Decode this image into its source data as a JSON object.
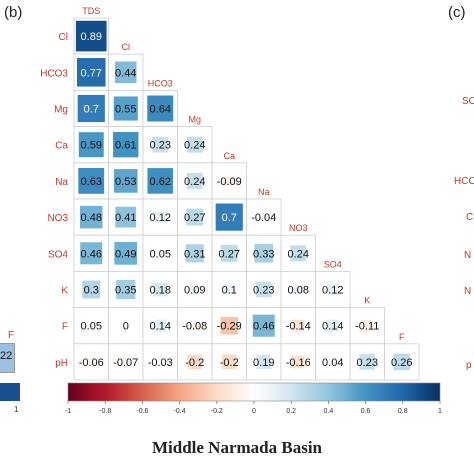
{
  "panel_label": "(b)",
  "right_panel_label": "(c)",
  "caption": "Middle Narmada Basin",
  "left_fragments": {
    "label": "F",
    "value": "22",
    "axis_value": "1"
  },
  "right_fragments": [
    "SO",
    "HCO",
    "C",
    "N",
    "N",
    "p"
  ],
  "colors": {
    "positive": "#1f5aa6",
    "negative": "#b2182b",
    "label": "#c0392b",
    "frame": "#999999"
  },
  "chart_data": {
    "type": "heatmap",
    "title": "",
    "variables": [
      "TDS",
      "Cl",
      "HCO3",
      "Mg",
      "Ca",
      "Na",
      "NO3",
      "SO4",
      "K",
      "F",
      "pH"
    ],
    "row_labels": [
      "Cl",
      "HCO3",
      "Mg",
      "Ca",
      "Na",
      "NO3",
      "SO4",
      "K",
      "F",
      "pH"
    ],
    "diagonal_labels": [
      "TDS",
      "Cl",
      "HCO3",
      "Mg",
      "Ca",
      "Na",
      "NO3",
      "SO4",
      "K",
      "F"
    ],
    "matrix": [
      [
        0.89
      ],
      [
        0.77,
        0.44
      ],
      [
        0.7,
        0.55,
        0.64
      ],
      [
        0.59,
        0.61,
        0.23,
        0.24
      ],
      [
        0.63,
        0.53,
        0.62,
        0.24,
        -0.09
      ],
      [
        0.48,
        0.41,
        0.12,
        0.27,
        0.7,
        -0.04
      ],
      [
        0.46,
        0.49,
        0.05,
        0.31,
        0.27,
        0.33,
        0.24
      ],
      [
        0.3,
        0.35,
        0.18,
        0.09,
        0.1,
        0.23,
        0.08,
        0.12
      ],
      [
        0.05,
        0,
        0.14,
        -0.08,
        -0.29,
        0.46,
        -0.14,
        0.14,
        -0.11
      ],
      [
        -0.06,
        -0.07,
        -0.03,
        -0.2,
        -0.2,
        0.19,
        -0.16,
        0.04,
        0.23,
        0.26
      ]
    ],
    "colorbar": {
      "range": [
        -1,
        1
      ],
      "ticks": [
        "-1",
        "-0.8",
        "-0.6",
        "-0.4",
        "-0.2",
        "0",
        "0.2",
        "0.4",
        "0.6",
        "0.8",
        "1"
      ]
    }
  }
}
